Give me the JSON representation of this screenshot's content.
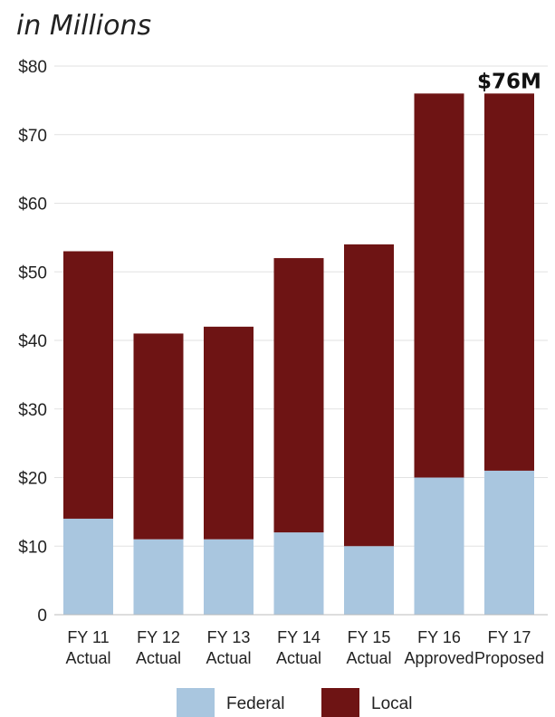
{
  "chart_data": {
    "type": "bar",
    "stacked": true,
    "subtitle": "in Millions",
    "categories": [
      [
        "FY 11",
        "Actual"
      ],
      [
        "FY 12",
        "Actual"
      ],
      [
        "FY 13",
        "Actual"
      ],
      [
        "FY 14",
        "Actual"
      ],
      [
        "FY 15",
        "Actual"
      ],
      [
        "FY 16",
        "Approved"
      ],
      [
        "FY 17",
        "Proposed"
      ]
    ],
    "series": [
      {
        "name": "Federal",
        "color": "#a9c6df",
        "values": [
          14,
          11,
          11,
          12,
          10,
          20,
          21
        ]
      },
      {
        "name": "Local",
        "color": "#6e1414",
        "values": [
          39,
          30,
          31,
          40,
          44,
          56,
          55
        ]
      }
    ],
    "yticks": [
      "0",
      "$10",
      "$20",
      "$30",
      "$40",
      "$50",
      "$60",
      "$70",
      "$80"
    ],
    "ylim": [
      0,
      80
    ],
    "grid": true,
    "annotation": {
      "text": "$76M",
      "category_index": 6
    },
    "legend_position": "bottom"
  }
}
